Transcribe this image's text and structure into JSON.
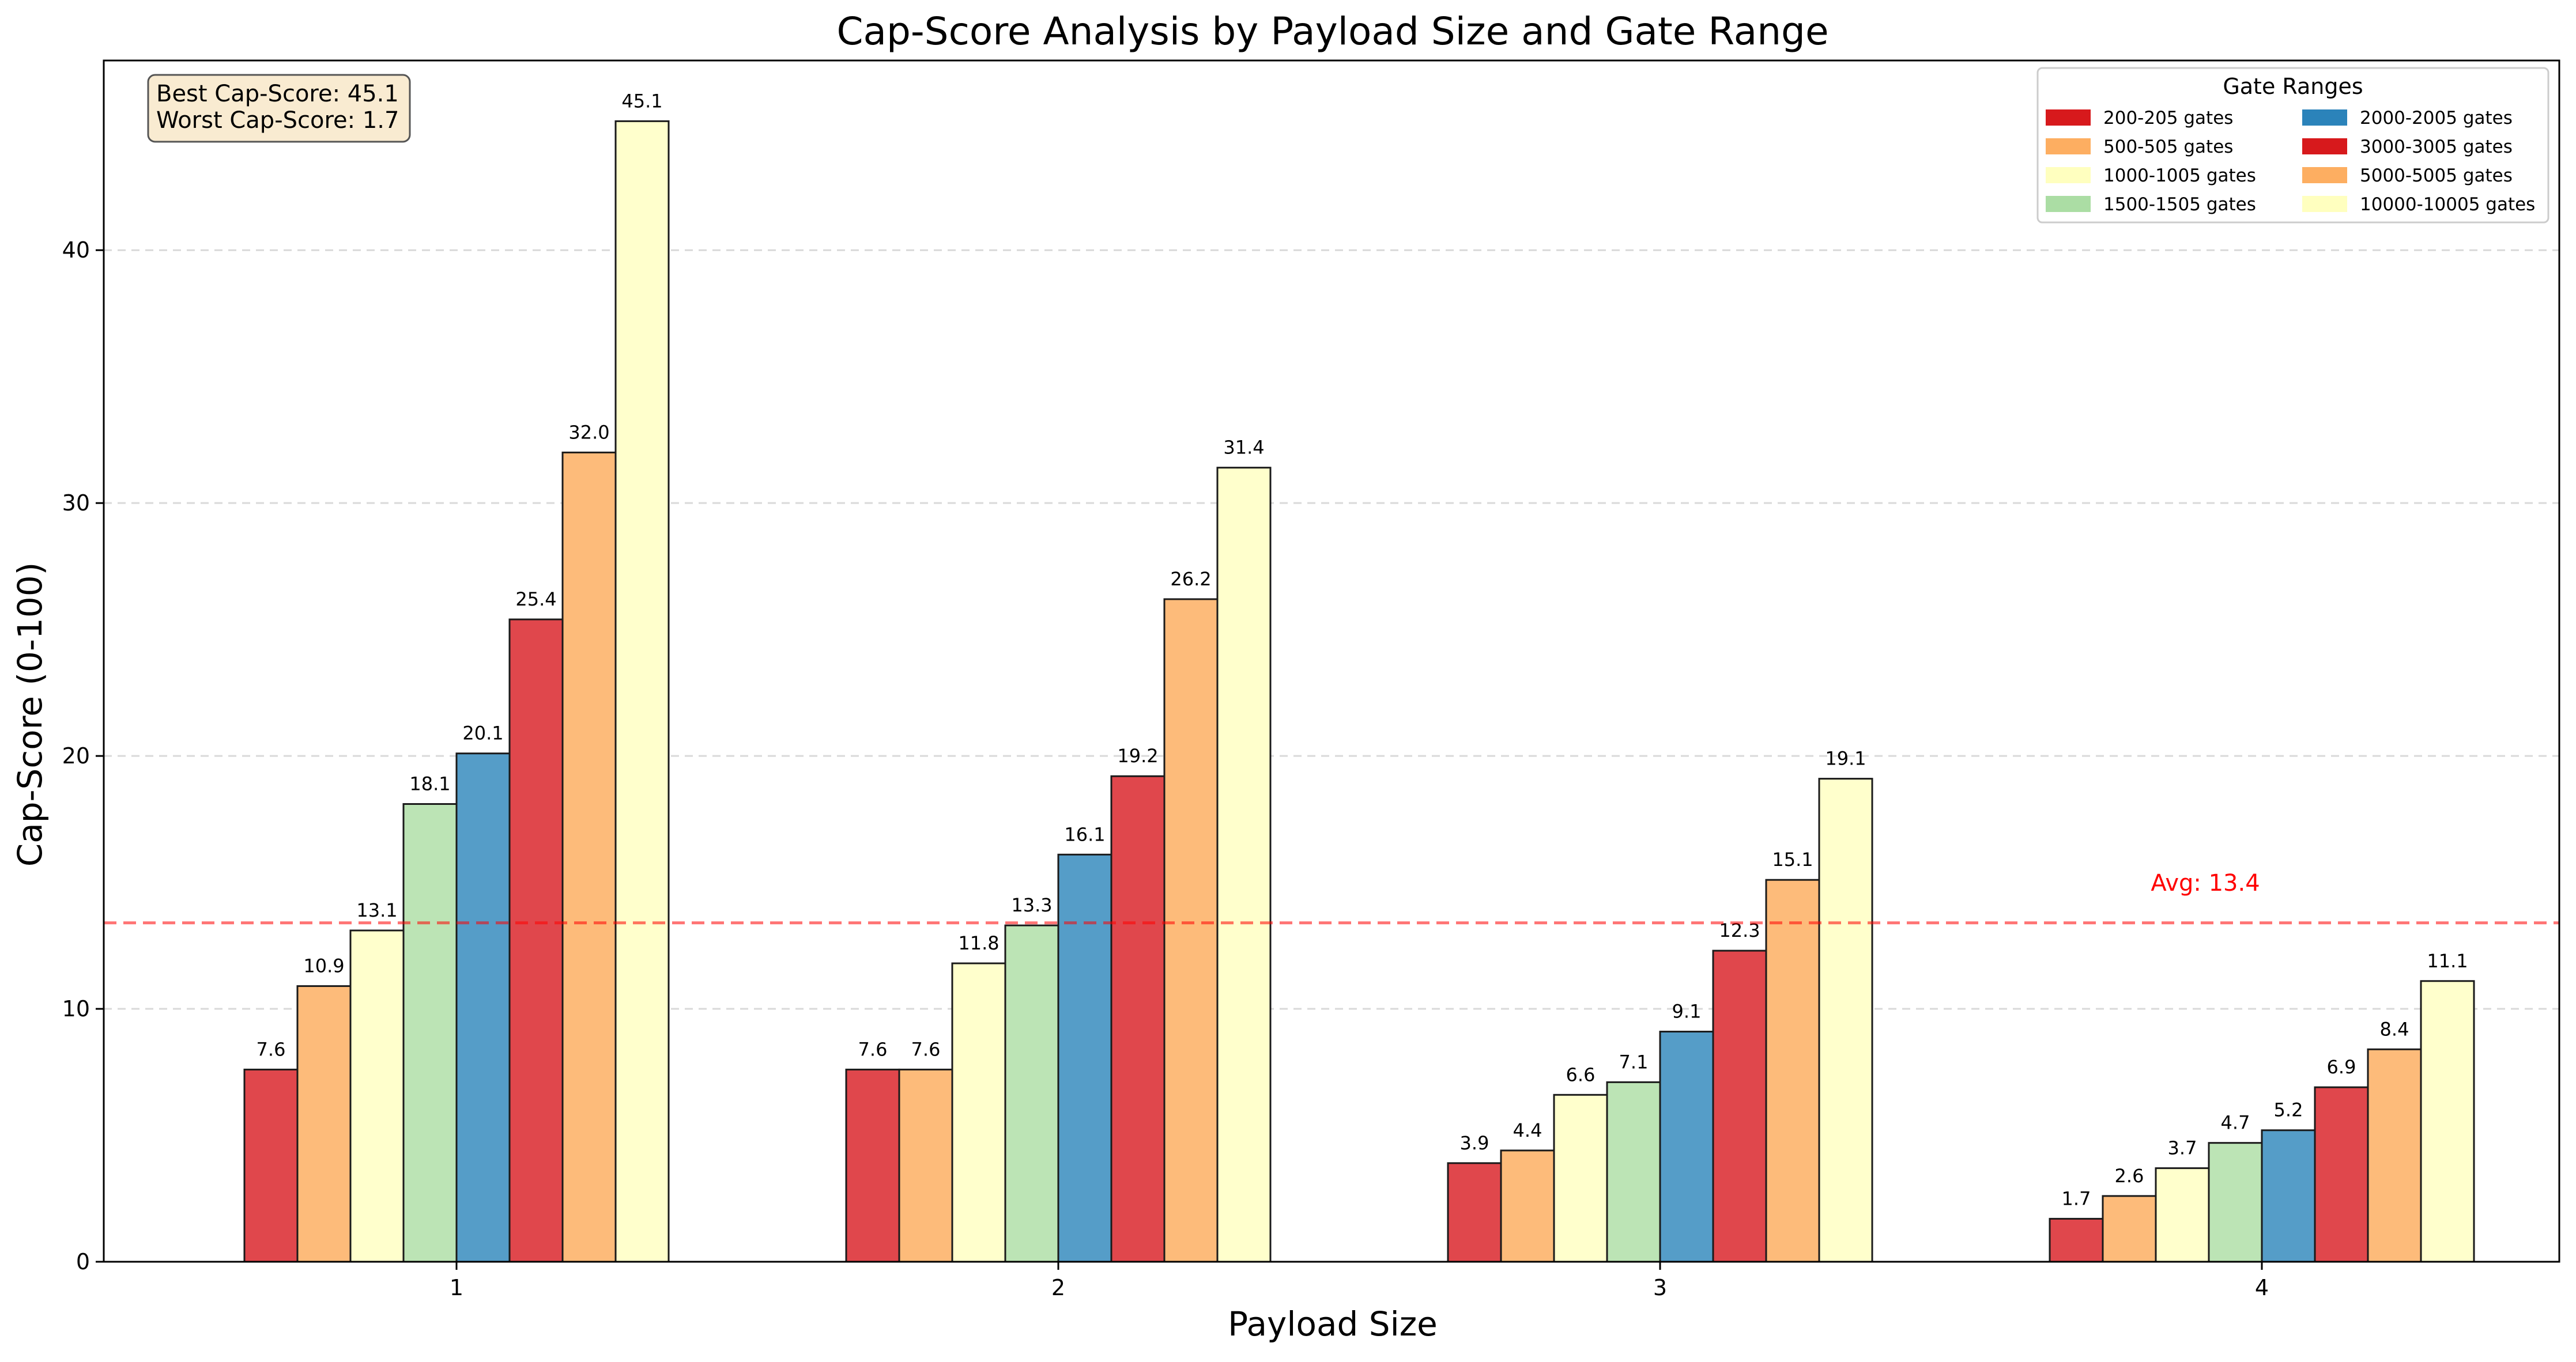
{
  "chart_data": {
    "type": "bar",
    "title": "Cap-Score Analysis by Payload Size and Gate Range",
    "xlabel": "Payload Size",
    "ylabel": "Cap-Score (0-100)",
    "categories": [
      "1",
      "2",
      "3",
      "4"
    ],
    "ylim": [
      0,
      47.5
    ],
    "yticks": [
      0,
      10,
      20,
      30,
      40
    ],
    "grid": "horizontal dashed",
    "legend": {
      "title": "Gate Ranges",
      "placement": "top-right",
      "columns": 2
    },
    "series": [
      {
        "name": "200-205 gates",
        "color": "#e0474c",
        "legend_color": "#d7191c",
        "values": [
          7.6,
          7.6,
          3.9,
          1.7
        ]
      },
      {
        "name": "500-505 gates",
        "color": "#fdbb7a",
        "legend_color": "#fdae61",
        "values": [
          10.9,
          7.6,
          4.4,
          2.6
        ]
      },
      {
        "name": "1000-1005 gates",
        "color": "#ffffcc",
        "legend_color": "#ffffbf",
        "values": [
          13.1,
          11.8,
          6.6,
          3.7
        ]
      },
      {
        "name": "1500-1505 gates",
        "color": "#bce4b5",
        "legend_color": "#abdda4",
        "values": [
          18.1,
          13.3,
          7.1,
          4.7
        ]
      },
      {
        "name": "2000-2005 gates",
        "color": "#559dc8",
        "legend_color": "#2b83ba",
        "values": [
          20.1,
          16.1,
          9.1,
          5.2
        ]
      },
      {
        "name": "3000-3005 gates",
        "color": "#e0474c",
        "legend_color": "#d7191c",
        "values": [
          25.4,
          19.2,
          12.3,
          6.9
        ]
      },
      {
        "name": "5000-5005 gates",
        "color": "#fdbb7a",
        "legend_color": "#fdae61",
        "values": [
          32.0,
          26.2,
          15.1,
          8.4
        ]
      },
      {
        "name": "10000-10005 gates",
        "color": "#ffffcc",
        "legend_color": "#ffffbf",
        "values": [
          45.1,
          31.4,
          19.1,
          11.1
        ]
      }
    ],
    "average_line": {
      "value": 13.4,
      "label": "Avg: 13.4",
      "color": "#ff0000"
    },
    "stats_box": {
      "lines": [
        "Best Cap-Score: 45.1",
        "Worst Cap-Score: 1.7"
      ],
      "background": "#f5deb3"
    }
  }
}
